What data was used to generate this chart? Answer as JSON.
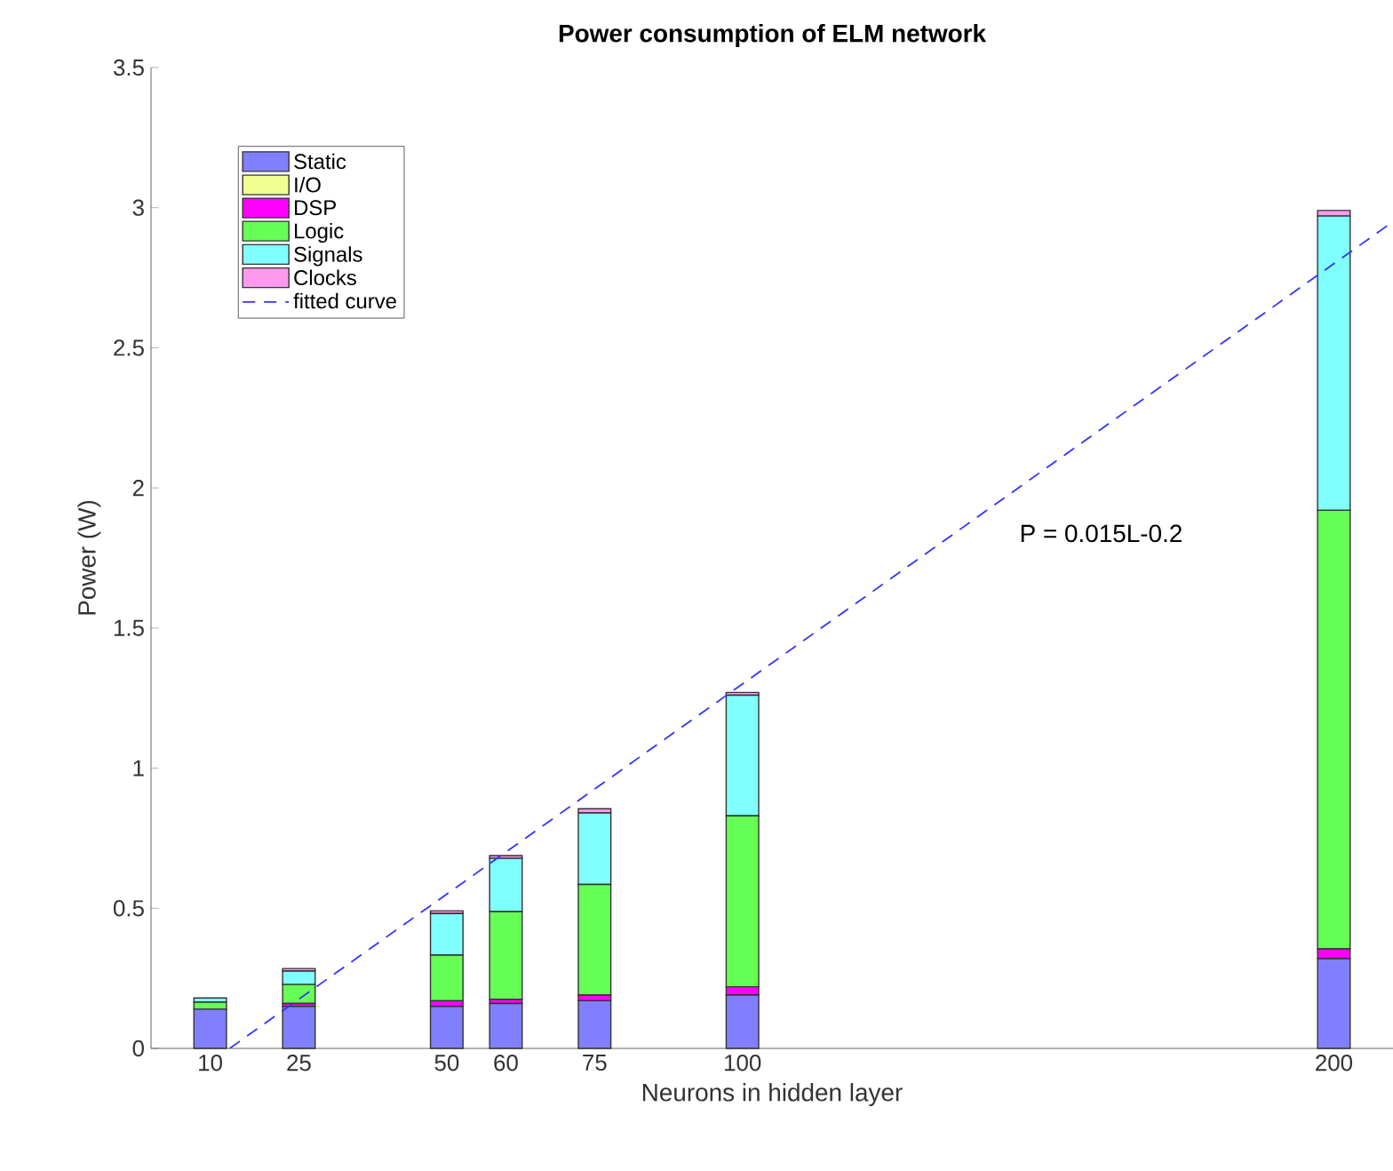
{
  "chart_data": {
    "type": "bar",
    "title": "Power consumption of ELM network",
    "xlabel": "Neurons in hidden layer",
    "ylabel": "Power (W)",
    "x": [
      10,
      25,
      50,
      60,
      75,
      100,
      200
    ],
    "stacked": true,
    "series": [
      {
        "name": "Static",
        "color": "#8080ff",
        "values": [
          0.14,
          0.15,
          0.15,
          0.16,
          0.17,
          0.19,
          0.32
        ]
      },
      {
        "name": "I/O",
        "color": "#f0ff90",
        "values": [
          0,
          0,
          0,
          0,
          0,
          0,
          0
        ]
      },
      {
        "name": "DSP",
        "color": "#ff00ff",
        "values": [
          null,
          0.01,
          0.02,
          0.015,
          0.02,
          0.03,
          0.035
        ]
      },
      {
        "name": "Logic",
        "color": "#66ff55",
        "values": [
          0.025,
          0.068,
          0.163,
          0.313,
          0.395,
          0.61,
          1.565
        ]
      },
      {
        "name": "Signals",
        "color": "#80ffff",
        "values": [
          0.015,
          0.048,
          0.148,
          0.19,
          0.255,
          0.43,
          1.05
        ]
      },
      {
        "name": "Clocks",
        "color": "#ff99ee",
        "values": [
          null,
          0.009,
          0.01,
          0.01,
          0.015,
          0.01,
          0.02
        ]
      },
      {
        "name": "fitted curve",
        "type": "line",
        "color": "#3333ff",
        "line_style": "dashed",
        "x": [
          13.3,
          210
        ],
        "values": [
          0,
          2.95
        ]
      }
    ],
    "xlim": [
      0,
      210
    ],
    "ylim": [
      0,
      3.5
    ],
    "xticks": [
      10,
      25,
      50,
      60,
      75,
      100,
      200
    ],
    "yticks": [
      0,
      0.5,
      1,
      1.5,
      2,
      2.5,
      3,
      3.5
    ],
    "legend": "top left",
    "grid": false,
    "marker": "none",
    "annotations": [
      "P = 0.015L-0.2"
    ]
  }
}
